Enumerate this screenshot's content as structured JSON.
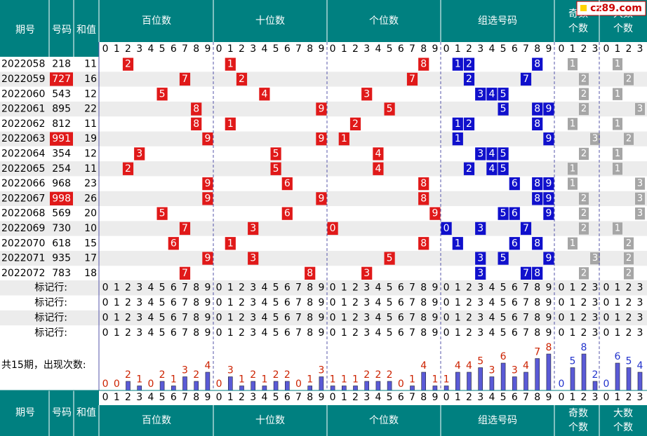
{
  "watermark": "cz89.com",
  "header": {
    "issue": "期号",
    "number": "号码",
    "sum": "和值",
    "sections": [
      "百位数",
      "十位数",
      "个位数",
      "组选号码"
    ],
    "odd_count": [
      "奇数",
      "个数"
    ],
    "big_count": [
      "大数",
      "个数"
    ]
  },
  "digits": [
    "0",
    "1",
    "2",
    "3",
    "4",
    "5",
    "6",
    "7",
    "8",
    "9"
  ],
  "count_digits": [
    "0",
    "1",
    "2",
    "3"
  ],
  "mark_row_label": "标记行:",
  "stats_label": "共15期，出现次数:",
  "colors": {
    "teal": "#008080",
    "red": "#e01919",
    "blue": "#1010cc",
    "gray": "#a6a6a6",
    "stripe": "#ececec",
    "bar": "#5a5ad6",
    "count_red": "#cc2200",
    "count_blue": "#2233cc"
  },
  "chart_data": {
    "type": "table",
    "rows": [
      {
        "issue": "2022058",
        "number": "218",
        "sum": "11",
        "highlight": false,
        "odd": "1",
        "big": "1"
      },
      {
        "issue": "2022059",
        "number": "727",
        "sum": "16",
        "highlight": true,
        "odd": "2",
        "big": "2"
      },
      {
        "issue": "2022060",
        "number": "543",
        "sum": "12",
        "highlight": false,
        "odd": "2",
        "big": "1"
      },
      {
        "issue": "2022061",
        "number": "895",
        "sum": "22",
        "highlight": false,
        "odd": "2",
        "big": "3"
      },
      {
        "issue": "2022062",
        "number": "812",
        "sum": "11",
        "highlight": false,
        "odd": "1",
        "big": "1"
      },
      {
        "issue": "2022063",
        "number": "991",
        "sum": "19",
        "highlight": true,
        "odd": "3",
        "big": "2"
      },
      {
        "issue": "2022064",
        "number": "354",
        "sum": "12",
        "highlight": false,
        "odd": "2",
        "big": "1"
      },
      {
        "issue": "2022065",
        "number": "254",
        "sum": "11",
        "highlight": false,
        "odd": "1",
        "big": "1"
      },
      {
        "issue": "2022066",
        "number": "968",
        "sum": "23",
        "highlight": false,
        "odd": "1",
        "big": "3"
      },
      {
        "issue": "2022067",
        "number": "998",
        "sum": "26",
        "highlight": true,
        "odd": "2",
        "big": "3"
      },
      {
        "issue": "2022068",
        "number": "569",
        "sum": "20",
        "highlight": false,
        "odd": "2",
        "big": "3"
      },
      {
        "issue": "2022069",
        "number": "730",
        "sum": "10",
        "highlight": false,
        "odd": "2",
        "big": "1"
      },
      {
        "issue": "2022070",
        "number": "618",
        "sum": "15",
        "highlight": false,
        "odd": "1",
        "big": "2"
      },
      {
        "issue": "2022071",
        "number": "935",
        "sum": "17",
        "highlight": false,
        "odd": "3",
        "big": "2"
      },
      {
        "issue": "2022072",
        "number": "783",
        "sum": "18",
        "highlight": false,
        "odd": "2",
        "big": "2"
      }
    ],
    "occurrence_counts": {
      "hundreds": [
        0,
        0,
        2,
        1,
        0,
        2,
        1,
        3,
        2,
        4
      ],
      "tens": [
        0,
        3,
        1,
        2,
        1,
        2,
        2,
        0,
        1,
        3
      ],
      "units": [
        1,
        1,
        1,
        2,
        2,
        2,
        0,
        1,
        4,
        1
      ],
      "group": [
        1,
        4,
        4,
        5,
        3,
        6,
        3,
        4,
        7,
        8
      ],
      "odd": [
        0,
        5,
        8,
        2
      ],
      "big": [
        0,
        6,
        5,
        4
      ]
    }
  }
}
